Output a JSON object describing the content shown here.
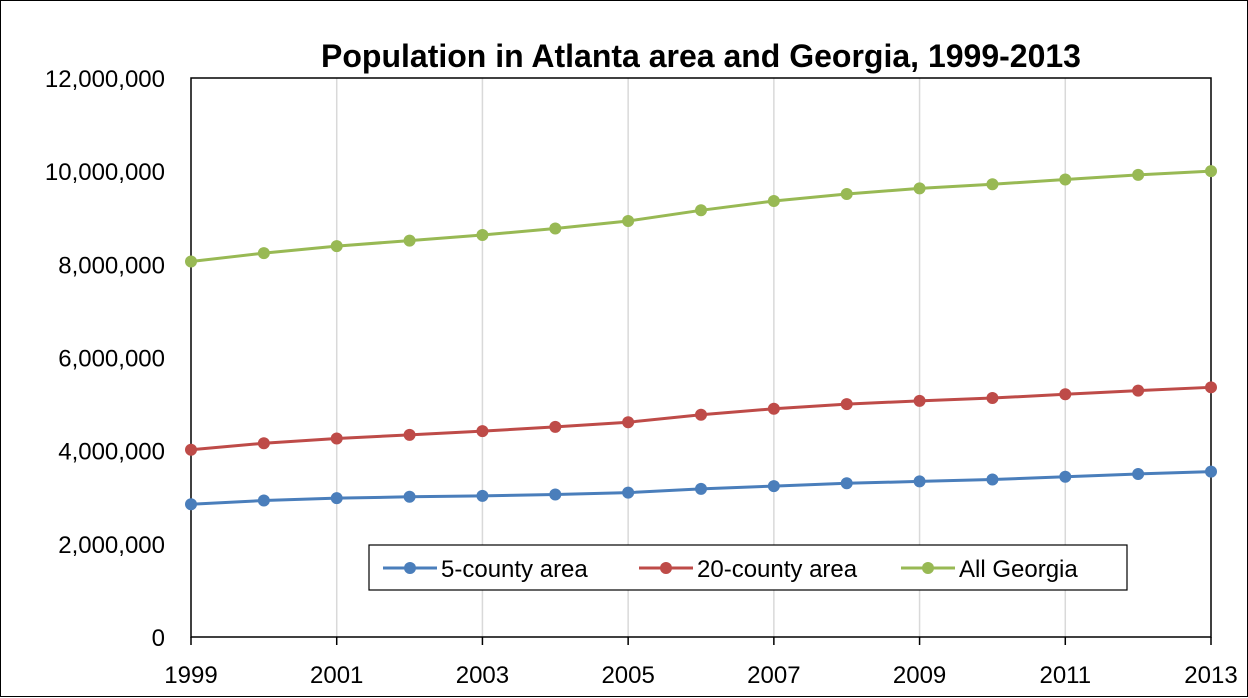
{
  "chart_data": {
    "type": "line",
    "title": "Population in Atlanta area and Georgia, 1999-2013",
    "xlabel": "",
    "ylabel": "",
    "x": [
      1999,
      2000,
      2001,
      2002,
      2003,
      2004,
      2005,
      2006,
      2007,
      2008,
      2009,
      2010,
      2011,
      2012,
      2013
    ],
    "x_tick_labels": [
      "1999",
      "2001",
      "2003",
      "2005",
      "2007",
      "2009",
      "2011",
      "2013"
    ],
    "y_tick_labels": [
      "0",
      "2,000,000",
      "4,000,000",
      "6,000,000",
      "8,000,000",
      "10,000,000",
      "12,000,000"
    ],
    "y_ticks": [
      0,
      2000000,
      4000000,
      6000000,
      8000000,
      10000000,
      12000000
    ],
    "ylim": [
      0,
      12000000
    ],
    "xlim": [
      1999,
      2013
    ],
    "grid": "vertical",
    "legend_position": "bottom-center",
    "series": [
      {
        "name": "5-county area",
        "color": "#4a7ebb",
        "values": [
          2850000,
          2930000,
          2980000,
          3010000,
          3030000,
          3060000,
          3100000,
          3180000,
          3240000,
          3300000,
          3340000,
          3380000,
          3440000,
          3500000,
          3550000
        ]
      },
      {
        "name": "20-county area",
        "color": "#be4b48",
        "values": [
          4020000,
          4160000,
          4260000,
          4340000,
          4420000,
          4510000,
          4610000,
          4770000,
          4900000,
          5000000,
          5070000,
          5130000,
          5210000,
          5290000,
          5360000
        ]
      },
      {
        "name": "All Georgia",
        "color": "#98b954",
        "values": [
          8060000,
          8240000,
          8390000,
          8510000,
          8630000,
          8770000,
          8930000,
          9160000,
          9360000,
          9510000,
          9630000,
          9720000,
          9820000,
          9920000,
          10000000
        ]
      }
    ]
  }
}
